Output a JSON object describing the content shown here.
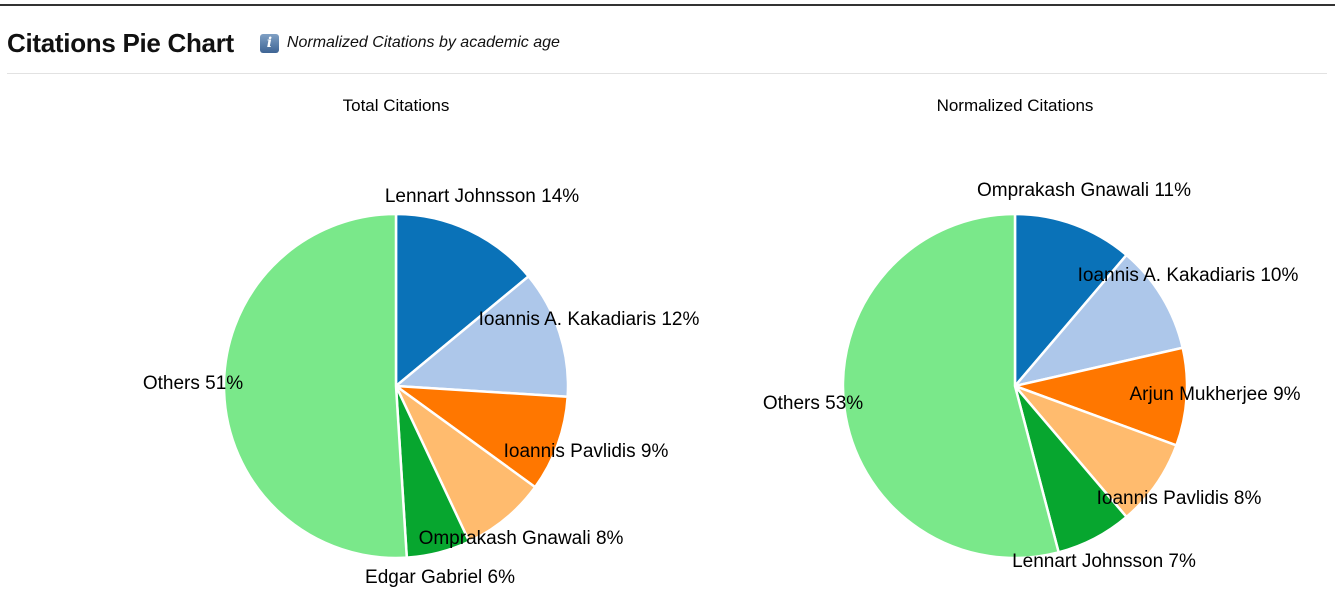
{
  "header": {
    "title": "Citations Pie Chart",
    "info_icon": "info-icon",
    "subtitle": "Normalized Citations by academic age"
  },
  "colors": {
    "blue": "#1f77b4",
    "light_blue": "#aec7e8",
    "orange": "#ff7f0e",
    "light_orange": "#ffbb78",
    "green": "#2ca02c",
    "light_green": "#98df8a"
  },
  "chart_data": [
    {
      "type": "pie",
      "title": "Total Citations",
      "slices": [
        {
          "label": "Lennart Johnsson 14%",
          "value": 14,
          "color": "#0a72b8"
        },
        {
          "label": "Ioannis A. Kakadiaris 12%",
          "value": 12,
          "color": "#adc7ea"
        },
        {
          "label": "Ioannis Pavlidis 9%",
          "value": 9,
          "color": "#ff7700"
        },
        {
          "label": "Omprakash Gnawali 8%",
          "value": 8,
          "color": "#ffbb6e"
        },
        {
          "label": "Edgar Gabriel 6%",
          "value": 6,
          "color": "#07a62f"
        },
        {
          "label": "Others 51%",
          "value": 51,
          "color": "#7ae88a"
        }
      ]
    },
    {
      "type": "pie",
      "title": "Normalized Citations",
      "slices": [
        {
          "label": "Omprakash Gnawali 11%",
          "value": 11,
          "color": "#0a72b8"
        },
        {
          "label": "Ioannis A. Kakadiaris 10%",
          "value": 10,
          "color": "#adc7ea"
        },
        {
          "label": "Arjun Mukherjee 9%",
          "value": 9,
          "color": "#ff7700"
        },
        {
          "label": "Ioannis Pavlidis 8%",
          "value": 8,
          "color": "#ffbb6e"
        },
        {
          "label": "Lennart Johnsson 7%",
          "value": 7,
          "color": "#07a62f"
        },
        {
          "label": "Others 53%",
          "value": 53,
          "color": "#7ae88a"
        }
      ]
    }
  ]
}
